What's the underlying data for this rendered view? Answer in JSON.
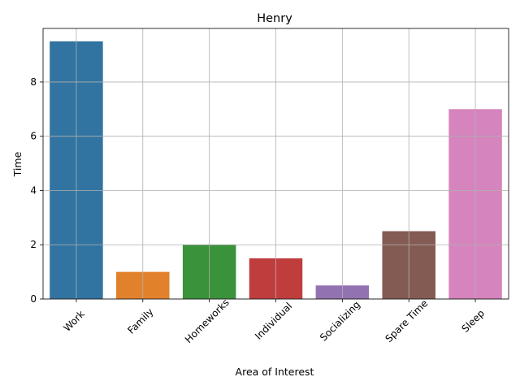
{
  "chart_data": {
    "type": "bar",
    "title": "Henry",
    "xlabel": "Area of Interest",
    "ylabel": "Time",
    "categories": [
      "Work",
      "Family",
      "Homeworks",
      "Individual",
      "Socializing",
      "Spare Time",
      "Sleep"
    ],
    "values": [
      9.5,
      1.0,
      2.0,
      1.5,
      0.5,
      2.5,
      7.0
    ],
    "colors": [
      "#3274a1",
      "#e1812c",
      "#3a923a",
      "#c03d3e",
      "#9372b2",
      "#845b53",
      "#d684bd"
    ],
    "ylim": [
      0,
      9.975
    ],
    "yticks": [
      0,
      2,
      4,
      6,
      8
    ],
    "grid": true,
    "xtick_rotation": -45
  }
}
